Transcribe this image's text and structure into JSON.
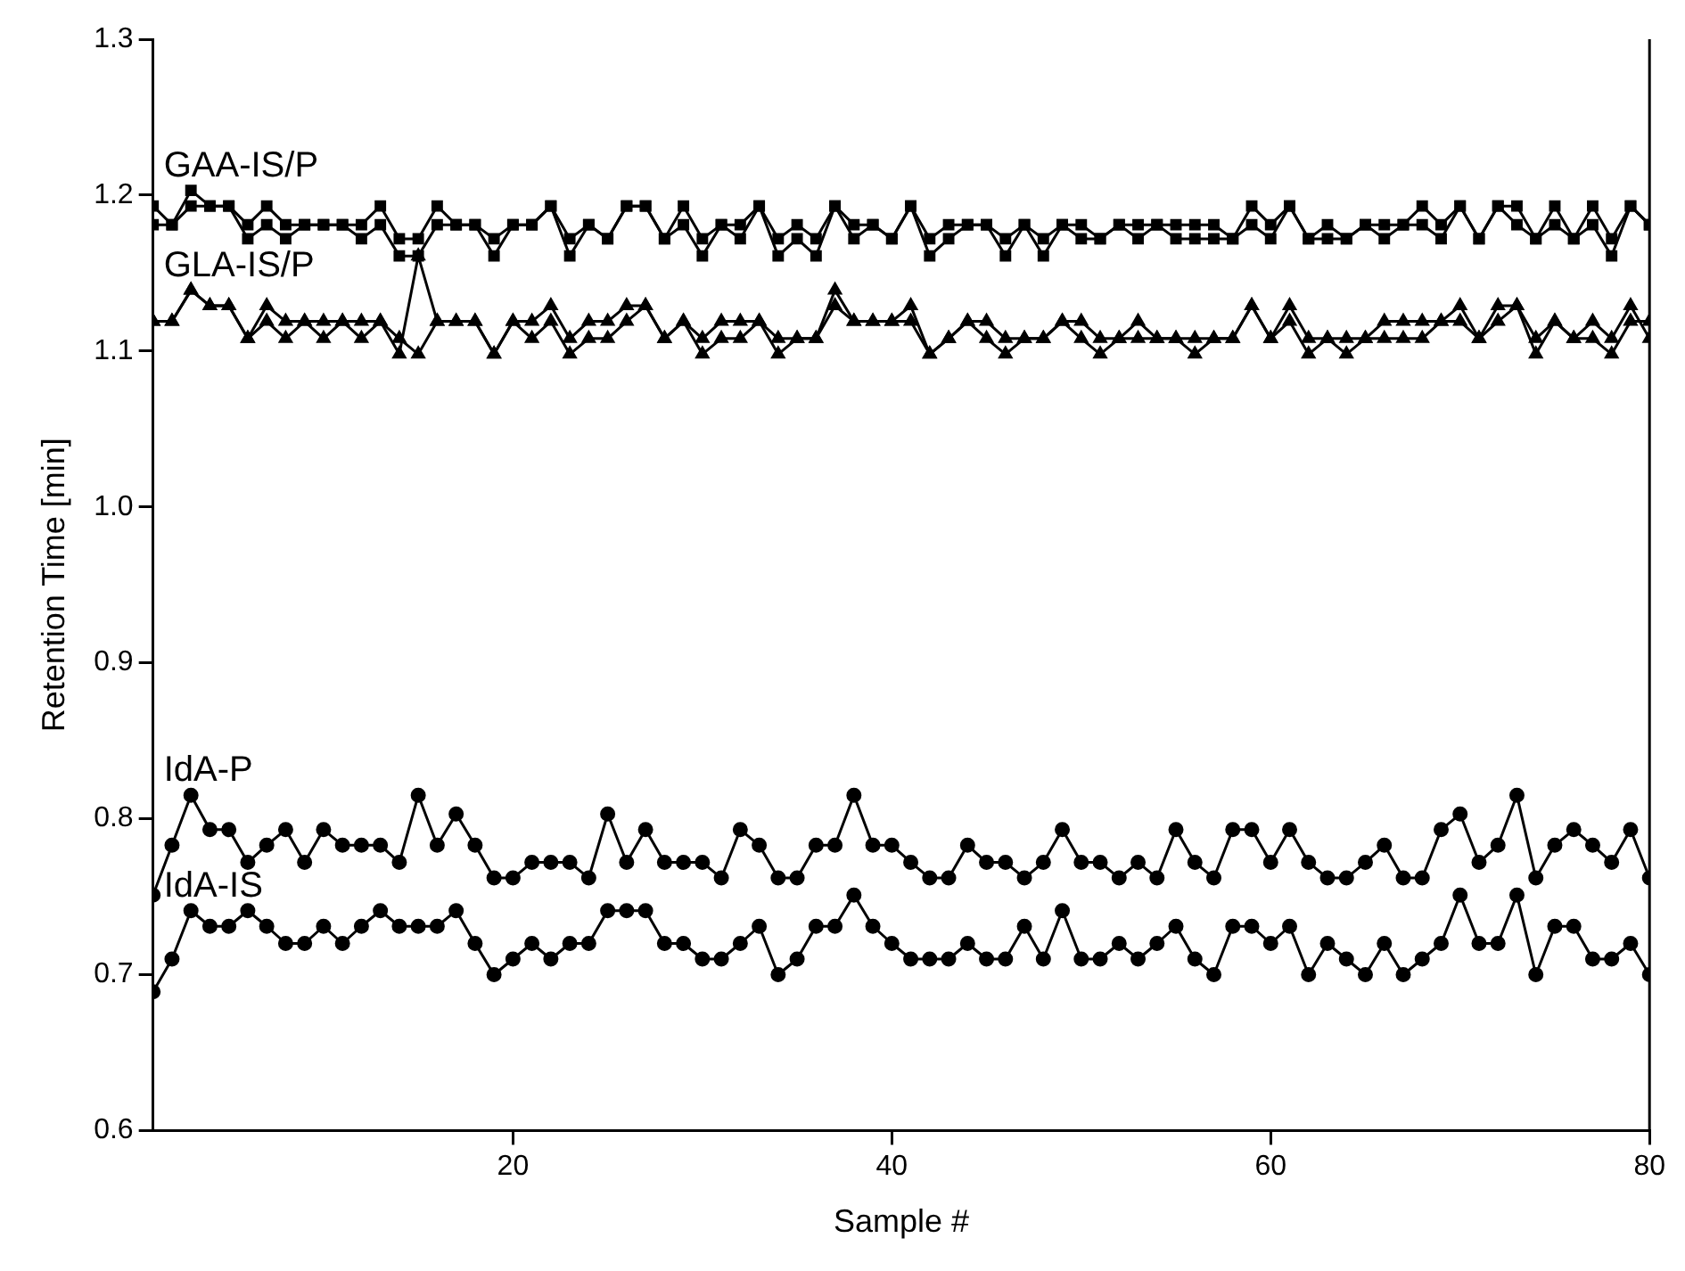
{
  "chart_data": {
    "type": "line",
    "xlabel": "Sample #",
    "ylabel": "Retention Time [min]",
    "x": [
      1,
      2,
      3,
      4,
      5,
      6,
      7,
      8,
      9,
      10,
      11,
      12,
      13,
      14,
      15,
      16,
      17,
      18,
      19,
      20,
      21,
      22,
      23,
      24,
      25,
      26,
      27,
      28,
      29,
      30,
      31,
      32,
      33,
      34,
      35,
      36,
      37,
      38,
      39,
      40,
      41,
      42,
      43,
      44,
      45,
      46,
      47,
      48,
      49,
      50,
      51,
      52,
      53,
      54,
      55,
      56,
      57,
      58,
      59,
      60,
      61,
      62,
      63,
      64,
      65,
      66,
      67,
      68,
      69,
      70,
      71,
      72,
      73,
      74,
      75,
      76,
      77,
      78,
      79,
      80
    ],
    "xlim": [
      1,
      80
    ],
    "xticks": [
      20,
      40,
      60,
      80
    ],
    "ylim": [
      0.6,
      1.3
    ],
    "yticks": [
      0.6,
      0.7,
      0.8,
      0.9,
      {
        "value": 1,
        "label": "1.0"
      },
      1.1,
      1.2,
      1.3
    ],
    "grid": false,
    "legend": false,
    "series": [
      {
        "name": "GAA-IS/P",
        "color": "#000000",
        "marker": "square",
        "values": [
          1.193,
          1.181,
          1.203,
          1.193,
          1.193,
          1.181,
          1.193,
          1.181,
          1.181,
          1.181,
          1.181,
          1.181,
          1.193,
          1.172,
          1.172,
          1.193,
          1.181,
          1.181,
          1.172,
          1.181,
          1.181,
          1.193,
          1.172,
          1.181,
          1.172,
          1.193,
          1.193,
          1.172,
          1.193,
          1.172,
          1.181,
          1.181,
          1.193,
          1.172,
          1.181,
          1.172,
          1.193,
          1.181,
          1.181,
          1.172,
          1.193,
          1.172,
          1.181,
          1.181,
          1.181,
          1.172,
          1.181,
          1.172,
          1.181,
          1.181,
          1.172,
          1.181,
          1.181,
          1.181,
          1.181,
          1.181,
          1.181,
          1.172,
          1.193,
          1.181,
          1.193,
          1.172,
          1.181,
          1.172,
          1.181,
          1.181,
          1.181,
          1.193,
          1.181,
          1.193,
          1.172,
          1.193,
          1.193,
          1.172,
          1.193,
          1.172,
          1.193,
          1.172,
          1.193,
          1.181
        ]
      },
      {
        "color": "#000000",
        "marker": "square",
        "values": [
          1.181,
          1.181,
          1.193,
          1.193,
          1.193,
          1.172,
          1.181,
          1.172,
          1.181,
          1.181,
          1.181,
          1.172,
          1.181,
          1.161,
          1.161,
          1.181,
          1.181,
          1.181,
          1.161,
          1.181,
          1.181,
          1.193,
          1.161,
          1.181,
          1.172,
          1.193,
          1.193,
          1.172,
          1.181,
          1.161,
          1.181,
          1.172,
          1.193,
          1.161,
          1.172,
          1.161,
          1.193,
          1.172,
          1.181,
          1.172,
          1.193,
          1.161,
          1.172,
          1.181,
          1.181,
          1.161,
          1.181,
          1.161,
          1.181,
          1.172,
          1.172,
          1.181,
          1.172,
          1.181,
          1.172,
          1.172,
          1.172,
          1.172,
          1.181,
          1.172,
          1.193,
          1.172,
          1.172,
          1.172,
          1.181,
          1.172,
          1.181,
          1.181,
          1.172,
          1.193,
          1.172,
          1.193,
          1.181,
          1.172,
          1.181,
          1.172,
          1.181,
          1.161,
          1.193,
          1.181
        ]
      },
      {
        "name": "GLA-IS/P",
        "color": "#000000",
        "marker": "triangle",
        "values": [
          1.119,
          1.119,
          1.139,
          1.129,
          1.129,
          1.108,
          1.129,
          1.119,
          1.119,
          1.119,
          1.119,
          1.119,
          1.119,
          1.108,
          1.098,
          1.119,
          1.119,
          1.119,
          1.098,
          1.119,
          1.119,
          1.129,
          1.108,
          1.119,
          1.119,
          1.129,
          1.129,
          1.108,
          1.119,
          1.108,
          1.119,
          1.119,
          1.119,
          1.108,
          1.108,
          1.108,
          1.129,
          1.119,
          1.119,
          1.119,
          1.129,
          1.098,
          1.108,
          1.119,
          1.119,
          1.108,
          1.108,
          1.108,
          1.119,
          1.119,
          1.108,
          1.108,
          1.119,
          1.108,
          1.108,
          1.108,
          1.108,
          1.108,
          1.129,
          1.108,
          1.129,
          1.108,
          1.108,
          1.108,
          1.108,
          1.119,
          1.119,
          1.119,
          1.119,
          1.129,
          1.108,
          1.129,
          1.129,
          1.108,
          1.119,
          1.108,
          1.119,
          1.108,
          1.129,
          1.108
        ]
      },
      {
        "color": "#000000",
        "marker": "triangle",
        "values": [
          1.119,
          1.119,
          1.139,
          1.129,
          1.129,
          1.108,
          1.119,
          1.108,
          1.119,
          1.108,
          1.119,
          1.108,
          1.119,
          1.098,
          1.161,
          1.119,
          1.119,
          1.119,
          1.098,
          1.119,
          1.108,
          1.119,
          1.098,
          1.108,
          1.108,
          1.119,
          1.129,
          1.108,
          1.119,
          1.098,
          1.108,
          1.108,
          1.119,
          1.098,
          1.108,
          1.108,
          1.139,
          1.119,
          1.119,
          1.119,
          1.119,
          1.098,
          1.108,
          1.119,
          1.108,
          1.098,
          1.108,
          1.108,
          1.119,
          1.108,
          1.098,
          1.108,
          1.108,
          1.108,
          1.108,
          1.098,
          1.108,
          1.108,
          1.129,
          1.108,
          1.119,
          1.098,
          1.108,
          1.098,
          1.108,
          1.108,
          1.108,
          1.108,
          1.119,
          1.119,
          1.108,
          1.119,
          1.129,
          1.098,
          1.119,
          1.108,
          1.108,
          1.098,
          1.119,
          1.119
        ]
      },
      {
        "name": "IdA-P",
        "color": "#000000",
        "marker": "circle",
        "values": [
          0.751,
          0.783,
          0.815,
          0.793,
          0.793,
          0.772,
          0.783,
          0.793,
          0.772,
          0.793,
          0.783,
          0.783,
          0.783,
          0.772,
          0.815,
          0.783,
          0.803,
          0.783,
          0.762,
          0.762,
          0.772,
          0.772,
          0.772,
          0.762,
          0.803,
          0.772,
          0.793,
          0.772,
          0.772,
          0.772,
          0.762,
          0.793,
          0.783,
          0.762,
          0.762,
          0.783,
          0.783,
          0.815,
          0.783,
          0.783,
          0.772,
          0.762,
          0.762,
          0.783,
          0.772,
          0.772,
          0.762,
          0.772,
          0.793,
          0.772,
          0.772,
          0.762,
          0.772,
          0.762,
          0.793,
          0.772,
          0.762,
          0.793,
          0.793,
          0.772,
          0.793,
          0.772,
          0.762,
          0.762,
          0.772,
          0.783,
          0.762,
          0.762,
          0.793,
          0.803,
          0.772,
          0.783,
          0.815,
          0.762,
          0.783,
          0.793,
          0.783,
          0.772,
          0.793,
          0.762
        ]
      },
      {
        "name": "IdA-IS",
        "color": "#000000",
        "marker": "circle",
        "values": [
          0.689,
          0.71,
          0.741,
          0.731,
          0.731,
          0.741,
          0.731,
          0.72,
          0.72,
          0.731,
          0.72,
          0.731,
          0.741,
          0.731,
          0.731,
          0.731,
          0.741,
          0.72,
          0.7,
          0.71,
          0.72,
          0.71,
          0.72,
          0.72,
          0.741,
          0.741,
          0.741,
          0.72,
          0.72,
          0.71,
          0.71,
          0.72,
          0.731,
          0.7,
          0.71,
          0.731,
          0.731,
          0.751,
          0.731,
          0.72,
          0.71,
          0.71,
          0.71,
          0.72,
          0.71,
          0.71,
          0.731,
          0.71,
          0.741,
          0.71,
          0.71,
          0.72,
          0.71,
          0.72,
          0.731,
          0.71,
          0.7,
          0.731,
          0.731,
          0.72,
          0.731,
          0.7,
          0.72,
          0.71,
          0.7,
          0.72,
          0.7,
          0.71,
          0.72,
          0.751,
          0.72,
          0.72,
          0.751,
          0.7,
          0.731,
          0.731,
          0.71,
          0.71,
          0.72,
          0.7
        ]
      }
    ]
  }
}
